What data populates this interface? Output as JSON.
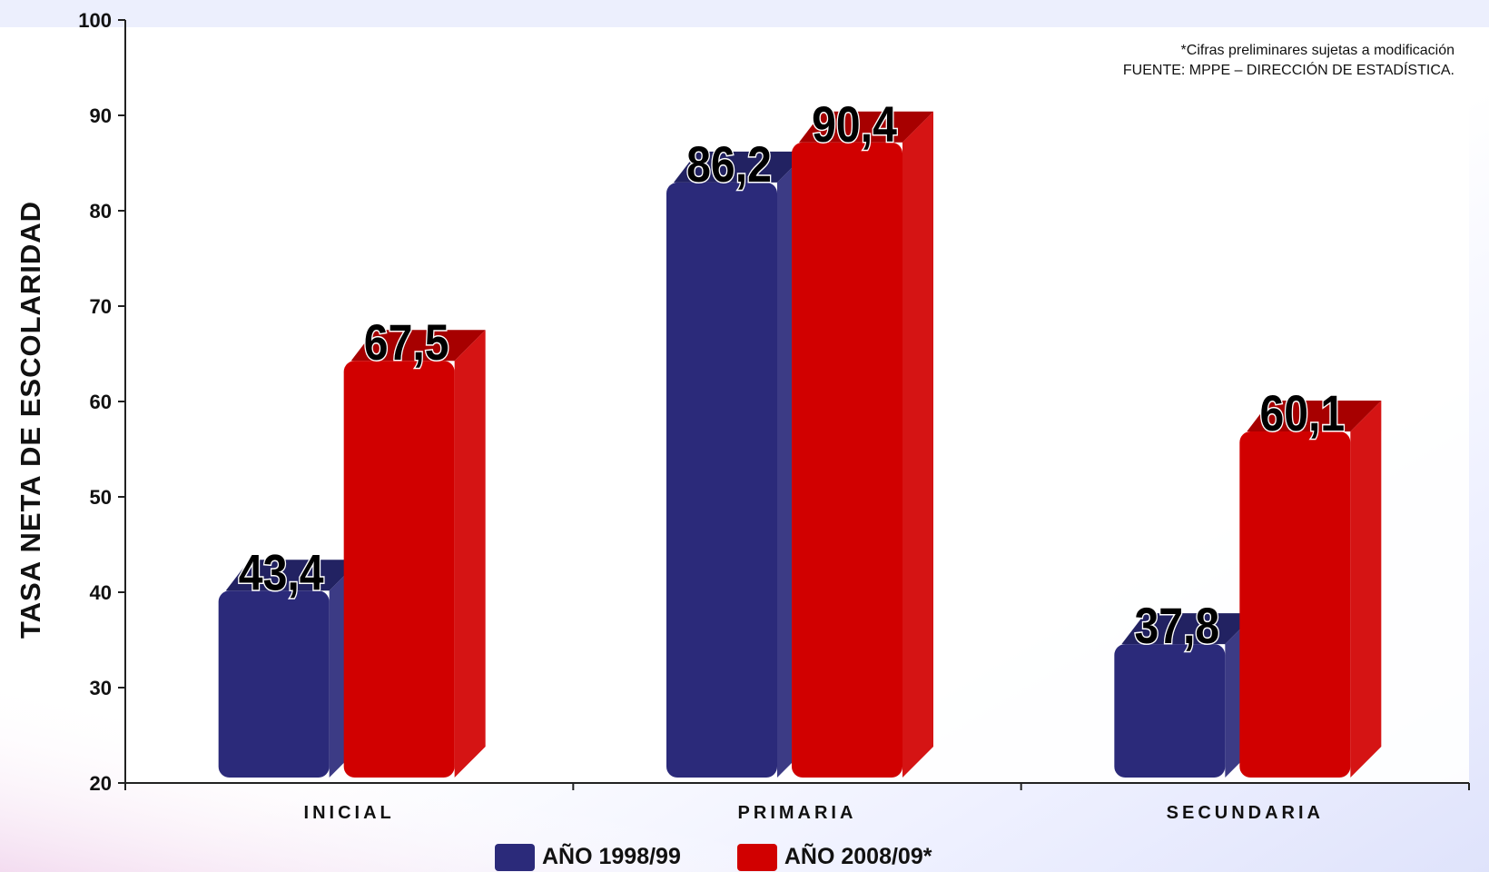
{
  "chart_data": {
    "type": "bar",
    "categories": [
      "INICIAL",
      "PRIMARIA",
      "SECUNDARIA"
    ],
    "series": [
      {
        "name": "AÑO 1998/99",
        "values": [
          43.4,
          86.2,
          37.8
        ],
        "labels": [
          "43,4",
          "86,2",
          "37,8"
        ],
        "color": "#2b2a7a"
      },
      {
        "name": "AÑO 2008/09*",
        "values": [
          67.5,
          90.4,
          60.1
        ],
        "labels": [
          "67,5",
          "90,4",
          "60,1"
        ],
        "color": "#d10000"
      }
    ],
    "ylabel": "TASA NETA DE ESCOLARIDAD",
    "xlabel": "",
    "ylim": [
      20,
      100
    ],
    "yticks": [
      "20",
      "30",
      "40",
      "50",
      "60",
      "70",
      "80",
      "90",
      "100"
    ],
    "grid": false,
    "legend_position": "bottom",
    "notes": [
      "*Cifras preliminares sujetas a modificación",
      "FUENTE: MPPE – DIRECCIÓN DE ESTADÍSTICA."
    ]
  }
}
